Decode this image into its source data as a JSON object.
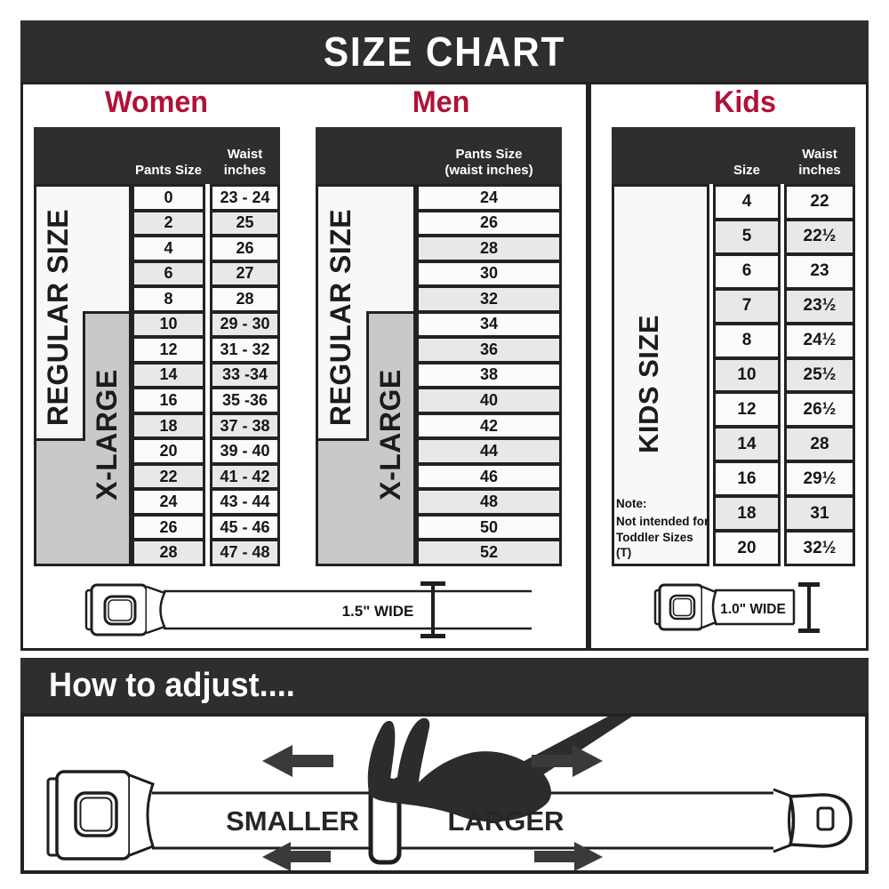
{
  "title": "SIZE CHART",
  "colors": {
    "bar_dark": "#2e2e2e",
    "line_dark": "#222222",
    "accent_red": "#b01236",
    "row_shaded": "#e8e8e8",
    "row_plain": "#fbfbfb",
    "xlarge_gray": "#c9c9c9",
    "box_white": "#f8f8f8"
  },
  "sections": {
    "women": {
      "heading": "Women",
      "col1_header": "Pants Size",
      "col2_header_line1": "Waist",
      "col2_header_line2": "inches",
      "regular_label": "REGULAR SIZE",
      "xlarge_label": "X-LARGE",
      "rows": [
        {
          "size": "0",
          "waist": "23 - 24",
          "shaded": false
        },
        {
          "size": "2",
          "waist": "25",
          "shaded": true
        },
        {
          "size": "4",
          "waist": "26",
          "shaded": false
        },
        {
          "size": "6",
          "waist": "27",
          "shaded": true
        },
        {
          "size": "8",
          "waist": "28",
          "shaded": false
        },
        {
          "size": "10",
          "waist": "29 - 30",
          "shaded": true
        },
        {
          "size": "12",
          "waist": "31 - 32",
          "shaded": false
        },
        {
          "size": "14",
          "waist": "33 -34",
          "shaded": true
        },
        {
          "size": "16",
          "waist": "35 -36",
          "shaded": false
        },
        {
          "size": "18",
          "waist": "37 - 38",
          "shaded": true
        },
        {
          "size": "20",
          "waist": "39 - 40",
          "shaded": false
        },
        {
          "size": "22",
          "waist": "41 - 42",
          "shaded": true
        },
        {
          "size": "24",
          "waist": "43 - 44",
          "shaded": false
        },
        {
          "size": "26",
          "waist": "45 - 46",
          "shaded": false
        },
        {
          "size": "28",
          "waist": "47 - 48",
          "shaded": true
        }
      ]
    },
    "men": {
      "heading": "Men",
      "col_header_line1": "Pants Size",
      "col_header_line2": "(waist inches)",
      "regular_label": "REGULAR SIZE",
      "xlarge_label": "X-LARGE",
      "rows": [
        {
          "size": "24",
          "shaded": false
        },
        {
          "size": "26",
          "shaded": false
        },
        {
          "size": "28",
          "shaded": true
        },
        {
          "size": "30",
          "shaded": false
        },
        {
          "size": "32",
          "shaded": true
        },
        {
          "size": "34",
          "shaded": false
        },
        {
          "size": "36",
          "shaded": true
        },
        {
          "size": "38",
          "shaded": false
        },
        {
          "size": "40",
          "shaded": true
        },
        {
          "size": "42",
          "shaded": false
        },
        {
          "size": "44",
          "shaded": true
        },
        {
          "size": "46",
          "shaded": false
        },
        {
          "size": "48",
          "shaded": true
        },
        {
          "size": "50",
          "shaded": false
        },
        {
          "size": "52",
          "shaded": true
        }
      ]
    },
    "kids": {
      "heading": "Kids",
      "col1_header": "Size",
      "col2_header_line1": "Waist",
      "col2_header_line2": "inches",
      "label": "KIDS SIZE",
      "note_line1": "Note:",
      "note_line2": "Not intended for",
      "note_line3": "Toddler Sizes (T)",
      "rows": [
        {
          "size": "4",
          "waist": "22",
          "shaded": false
        },
        {
          "size": "5",
          "waist": "22½",
          "shaded": true
        },
        {
          "size": "6",
          "waist": "23",
          "shaded": false
        },
        {
          "size": "7",
          "waist": "23½",
          "shaded": true
        },
        {
          "size": "8",
          "waist": "24½",
          "shaded": false
        },
        {
          "size": "10",
          "waist": "25½",
          "shaded": true
        },
        {
          "size": "12",
          "waist": "26½",
          "shaded": false
        },
        {
          "size": "14",
          "waist": "28",
          "shaded": true
        },
        {
          "size": "16",
          "waist": "29½",
          "shaded": false
        },
        {
          "size": "18",
          "waist": "31",
          "shaded": true
        },
        {
          "size": "20",
          "waist": "32½",
          "shaded": false
        }
      ]
    }
  },
  "belts": {
    "adult_width_label": "1.5\" WIDE",
    "kids_width_label": "1.0\" WIDE"
  },
  "how_to_adjust": {
    "heading": "How to adjust....",
    "smaller_label": "SMALLER",
    "larger_label": "LARGER"
  }
}
